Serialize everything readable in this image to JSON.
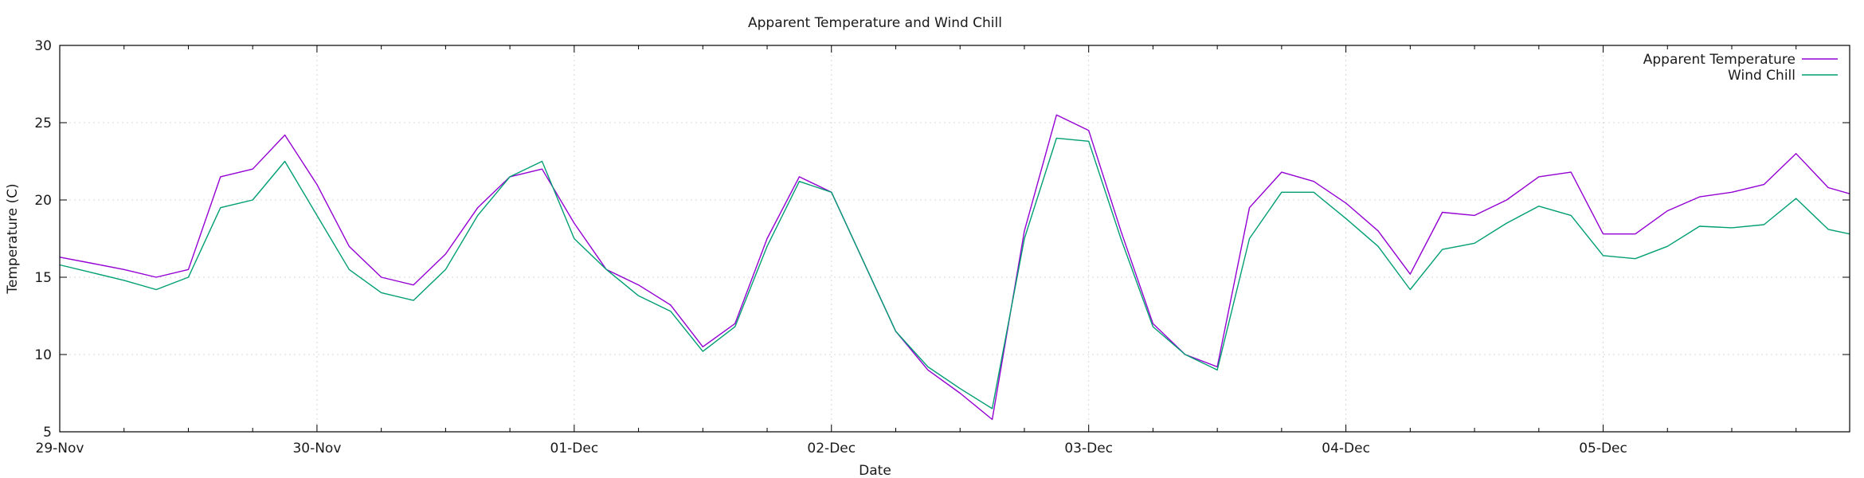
{
  "chart_data": {
    "type": "line",
    "title": "Apparent Temperature and Wind Chill",
    "xlabel": "Date",
    "ylabel": "Temperature (C)",
    "xlim": [
      "29-Nov 00:00",
      "05-Dec 23:00"
    ],
    "ylim": [
      5,
      30
    ],
    "yticks": [
      5,
      10,
      15,
      20,
      25,
      30
    ],
    "xtick_labels": [
      "29-Nov",
      "30-Nov",
      "01-Dec",
      "02-Dec",
      "03-Dec",
      "04-Dec",
      "05-Dec"
    ],
    "grid": true,
    "legend_position": "top-right",
    "x": [
      "29-Nov 00:00",
      "29-Nov 03:00",
      "29-Nov 06:00",
      "29-Nov 09:00",
      "29-Nov 12:00",
      "29-Nov 15:00",
      "29-Nov 18:00",
      "29-Nov 21:00",
      "30-Nov 00:00",
      "30-Nov 03:00",
      "30-Nov 06:00",
      "30-Nov 09:00",
      "30-Nov 12:00",
      "30-Nov 15:00",
      "30-Nov 18:00",
      "30-Nov 21:00",
      "01-Dec 00:00",
      "01-Dec 03:00",
      "01-Dec 06:00",
      "01-Dec 09:00",
      "01-Dec 12:00",
      "01-Dec 15:00",
      "01-Dec 18:00",
      "01-Dec 21:00",
      "02-Dec 00:00",
      "02-Dec 03:00",
      "02-Dec 06:00",
      "02-Dec 09:00",
      "02-Dec 12:00",
      "02-Dec 15:00",
      "02-Dec 18:00",
      "02-Dec 21:00",
      "03-Dec 00:00",
      "03-Dec 03:00",
      "03-Dec 06:00",
      "03-Dec 09:00",
      "03-Dec 12:00",
      "03-Dec 15:00",
      "03-Dec 18:00",
      "03-Dec 21:00",
      "04-Dec 00:00",
      "04-Dec 03:00",
      "04-Dec 06:00",
      "04-Dec 09:00",
      "04-Dec 12:00",
      "04-Dec 15:00",
      "04-Dec 18:00",
      "04-Dec 21:00",
      "05-Dec 00:00",
      "05-Dec 03:00",
      "05-Dec 06:00",
      "05-Dec 09:00",
      "05-Dec 12:00",
      "05-Dec 15:00",
      "05-Dec 18:00",
      "05-Dec 21:00",
      "05-Dec 23:00"
    ],
    "series": [
      {
        "name": "Apparent Temperature",
        "color": "#9400d3",
        "values": [
          16.3,
          15.9,
          15.5,
          15.0,
          15.5,
          21.5,
          22.0,
          24.2,
          21.0,
          17.0,
          15.0,
          14.5,
          16.5,
          19.5,
          21.5,
          22.0,
          18.5,
          15.5,
          14.5,
          13.2,
          10.5,
          12.0,
          17.5,
          21.5,
          20.5,
          16.0,
          11.5,
          9.0,
          7.5,
          5.8,
          18.0,
          25.5,
          24.5,
          18.0,
          12.0,
          10.0,
          9.2,
          19.5,
          21.8,
          21.2,
          19.8,
          18.0,
          15.2,
          19.2,
          19.0,
          20.0,
          21.5,
          21.8,
          17.8,
          17.8,
          19.3,
          20.2,
          20.5,
          21.0,
          23.0,
          20.8,
          20.4
        ]
      },
      {
        "name": "Wind Chill",
        "color": "#009e73",
        "values": [
          15.8,
          15.3,
          14.8,
          14.2,
          15.0,
          19.5,
          20.0,
          22.5,
          19.0,
          15.5,
          14.0,
          13.5,
          15.5,
          19.0,
          21.5,
          22.5,
          17.5,
          15.5,
          13.8,
          12.8,
          10.2,
          11.8,
          17.0,
          21.2,
          20.5,
          16.0,
          11.5,
          9.2,
          7.8,
          6.5,
          17.5,
          24.0,
          23.8,
          17.5,
          11.8,
          10.0,
          9.0,
          17.5,
          20.5,
          20.5,
          18.8,
          17.0,
          14.2,
          16.8,
          17.2,
          18.5,
          19.6,
          19.0,
          16.4,
          16.2,
          17.0,
          18.3,
          18.2,
          18.4,
          20.1,
          18.1,
          17.8
        ]
      }
    ]
  }
}
